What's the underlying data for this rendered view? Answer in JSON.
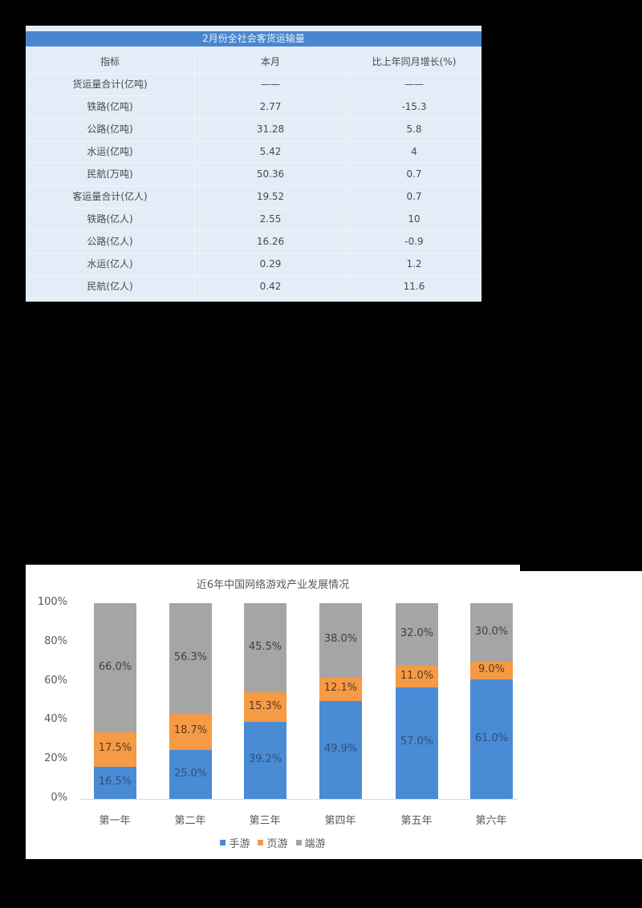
{
  "table": {
    "caption": "2月份全社会客货运输量",
    "headers": [
      "指标",
      "本月",
      "比上年同月增长(%)"
    ],
    "rows": [
      [
        "货运量合计(亿吨)",
        "——",
        "——"
      ],
      [
        "铁路(亿吨)",
        "2.77",
        "-15.3"
      ],
      [
        "公路(亿吨)",
        "31.28",
        "5.8"
      ],
      [
        "水运(亿吨)",
        "5.42",
        "4"
      ],
      [
        "民航(万吨)",
        "50.36",
        "0.7"
      ],
      [
        "客运量合计(亿人)",
        "19.52",
        "0.7"
      ],
      [
        "铁路(亿人)",
        "2.55",
        "10"
      ],
      [
        "公路(亿人)",
        "16.26",
        "-0.9"
      ],
      [
        "水运(亿人)",
        "0.29",
        "1.2"
      ],
      [
        "民航(亿人)",
        "0.42",
        "11.6"
      ]
    ]
  },
  "chart": {
    "title": "近6年中国网络游戏产业发展情况",
    "y_ticks": [
      "100%",
      "80%",
      "60%",
      "40%",
      "20%",
      "0%"
    ],
    "categories": [
      "第一年",
      "第二年",
      "第三年",
      "第四年",
      "第五年",
      "第六年"
    ],
    "legend": [
      {
        "label": "手游",
        "color": "#4a8bd6"
      },
      {
        "label": "页游",
        "color": "#f59a45"
      },
      {
        "label": "端游",
        "color": "#a5a5a5"
      }
    ],
    "labels": {
      "mobile": [
        "16.5%",
        "25.0%",
        "39.2%",
        "49.9%",
        "57.0%",
        "61.0%"
      ],
      "web": [
        "17.5%",
        "18.7%",
        "15.3%",
        "12.1%",
        "11.0%",
        "9.0%"
      ],
      "client": [
        "66.0%",
        "56.3%",
        "45.5%",
        "38.0%",
        "32.0%",
        "30.0%"
      ]
    }
  },
  "chart_data": {
    "type": "bar",
    "stacked": true,
    "title": "近6年中国网络游戏产业发展情况",
    "xlabel": "",
    "ylabel": "",
    "ylim": [
      0,
      100
    ],
    "y_ticks": [
      "0%",
      "20%",
      "40%",
      "60%",
      "80%",
      "100%"
    ],
    "grid": false,
    "legend_position": "bottom",
    "categories": [
      "第一年",
      "第二年",
      "第三年",
      "第四年",
      "第五年",
      "第六年"
    ],
    "series": [
      {
        "name": "手游",
        "color": "#4a8bd6",
        "values": [
          16.5,
          25.0,
          39.2,
          49.9,
          57.0,
          61.0
        ]
      },
      {
        "name": "页游",
        "color": "#f59a45",
        "values": [
          17.5,
          18.7,
          15.3,
          12.1,
          11.0,
          9.0
        ]
      },
      {
        "name": "端游",
        "color": "#a5a5a5",
        "values": [
          66.0,
          56.3,
          45.5,
          38.0,
          32.0,
          30.0
        ]
      }
    ]
  }
}
